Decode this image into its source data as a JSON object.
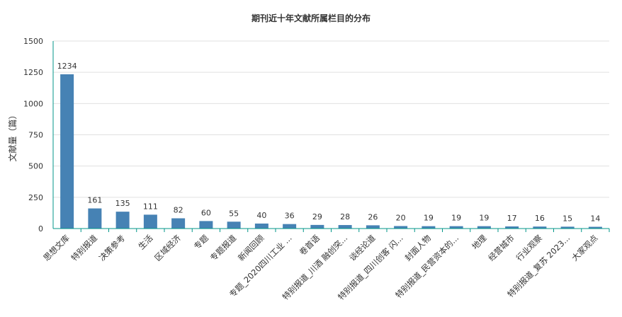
{
  "chart_data": {
    "type": "bar",
    "title": "期刊近十年文献所属栏目的分布",
    "ylabel": "文献量（篇）",
    "xlabel": "",
    "ylim": [
      0,
      1500
    ],
    "yticks": [
      0,
      250,
      500,
      750,
      1000,
      1250,
      1500
    ],
    "grid": true,
    "categories": [
      "思想文库",
      "特别报道",
      "决策参考",
      "生活",
      "区域经济",
      "专题",
      "专题报道",
      "新闻回顾",
      "专题_2020四川工业 ...",
      "卷首语",
      "特别报道_川酒 融创突...",
      "谈经论道",
      "特别报道_四川创客 闪...",
      "封面人物",
      "特别报道_民营资本的...",
      "地理",
      "经营城市",
      "行业观察",
      "特别报道_复苏 2023...",
      "大家观点"
    ],
    "values": [
      1234,
      161,
      135,
      111,
      82,
      60,
      55,
      40,
      36,
      29,
      28,
      26,
      20,
      19,
      19,
      19,
      17,
      16,
      15,
      14
    ],
    "colors": {
      "bar": "#4682b4",
      "axis": "#009688",
      "grid": "#e0e0e0"
    }
  }
}
